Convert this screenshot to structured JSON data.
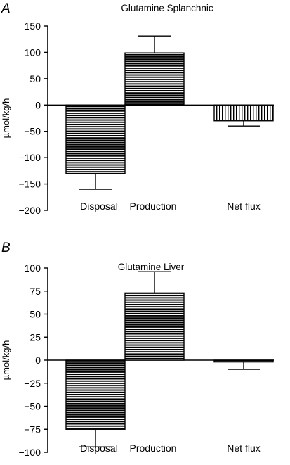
{
  "chart_data": [
    {
      "panel": "A",
      "type": "bar",
      "title": "Glutamine Splanchnic",
      "ylabel": "µmol/kg/h",
      "xlabel": "",
      "ylim": [
        -200,
        150
      ],
      "yticks": [
        150,
        100,
        50,
        0,
        -50,
        -100,
        -150,
        -200
      ],
      "ytick_labels": [
        "150",
        "100",
        "50",
        "0",
        "−50",
        "−100",
        "−150",
        "−200"
      ],
      "categories": [
        "Disposal",
        "Production",
        "Net flux"
      ],
      "values": [
        -130,
        99,
        -30
      ],
      "errors": [
        30,
        32,
        10
      ],
      "fill_patterns": [
        "horizontal-lines",
        "horizontal-lines",
        "vertical-lines"
      ]
    },
    {
      "panel": "B",
      "type": "bar",
      "title": "Glutamine Liver",
      "ylabel": "µmol/kg/h",
      "xlabel": "",
      "ylim": [
        -100,
        100
      ],
      "yticks": [
        100,
        75,
        50,
        25,
        0,
        -25,
        -50,
        -75,
        -100
      ],
      "ytick_labels": [
        "100",
        "75",
        "50",
        "25",
        "0",
        "−25",
        "−50",
        "−75",
        "−100"
      ],
      "categories": [
        "Disposal",
        "Production",
        "Net flux"
      ],
      "values": [
        -75,
        73,
        -2
      ],
      "errors": [
        19,
        23,
        8
      ],
      "fill_patterns": [
        "horizontal-lines",
        "horizontal-lines",
        "horizontal-lines"
      ]
    }
  ],
  "colors": {
    "ink": "#000000",
    "background": "#ffffff"
  }
}
